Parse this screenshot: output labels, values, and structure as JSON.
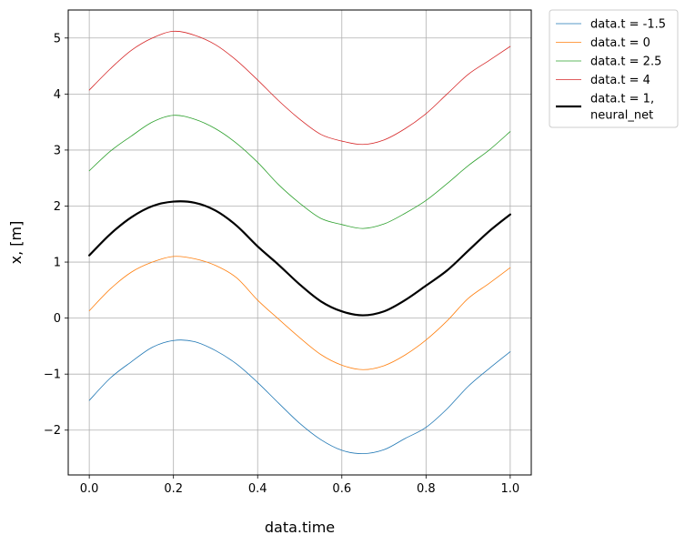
{
  "chart_data": {
    "type": "line",
    "title": "",
    "xlabel": "data.time",
    "ylabel": "x, [m]",
    "xlim": [
      -0.05,
      1.05
    ],
    "ylim": [
      -2.8,
      5.5
    ],
    "xticks": [
      0.0,
      0.2,
      0.4,
      0.6,
      0.8,
      1.0
    ],
    "xtick_labels": [
      "0.0",
      "0.2",
      "0.4",
      "0.6",
      "0.8",
      "1.0"
    ],
    "yticks": [
      -2,
      -1,
      0,
      1,
      2,
      3,
      4,
      5
    ],
    "ytick_labels": [
      "−2",
      "−1",
      "0",
      "1",
      "2",
      "3",
      "4",
      "5"
    ],
    "grid": true,
    "legend_position": "outside-top-right",
    "x": [
      0.0,
      0.05,
      0.1,
      0.15,
      0.2,
      0.25,
      0.3,
      0.35,
      0.4,
      0.45,
      0.5,
      0.55,
      0.6,
      0.65,
      0.7,
      0.75,
      0.8,
      0.85,
      0.9,
      0.95,
      1.0
    ],
    "series": [
      {
        "name": "data.t = -1.5",
        "color": "#1f77b4",
        "width": 0.8,
        "values": [
          -1.47,
          -1.07,
          -0.78,
          -0.52,
          -0.4,
          -0.42,
          -0.58,
          -0.82,
          -1.15,
          -1.52,
          -1.88,
          -2.17,
          -2.36,
          -2.42,
          -2.35,
          -2.15,
          -1.95,
          -1.62,
          -1.22,
          -0.9,
          -0.6
        ]
      },
      {
        "name": "data.t = 0",
        "color": "#ff7f0e",
        "width": 0.8,
        "values": [
          0.13,
          0.52,
          0.82,
          1.0,
          1.1,
          1.06,
          0.94,
          0.72,
          0.32,
          -0.02,
          -0.35,
          -0.65,
          -0.84,
          -0.92,
          -0.85,
          -0.66,
          -0.39,
          -0.05,
          0.35,
          0.62,
          0.9
        ]
      },
      {
        "name": "data.t = 2.5",
        "color": "#2ca02c",
        "width": 0.8,
        "values": [
          2.63,
          2.98,
          3.25,
          3.5,
          3.62,
          3.55,
          3.38,
          3.12,
          2.78,
          2.38,
          2.05,
          1.78,
          1.67,
          1.6,
          1.68,
          1.87,
          2.1,
          2.4,
          2.72,
          3.0,
          3.33
        ]
      },
      {
        "name": "data.t = 4",
        "color": "#d62728",
        "width": 0.8,
        "values": [
          4.07,
          4.45,
          4.78,
          5.0,
          5.12,
          5.05,
          4.88,
          4.6,
          4.25,
          3.88,
          3.55,
          3.28,
          3.16,
          3.1,
          3.18,
          3.38,
          3.65,
          4.0,
          4.35,
          4.6,
          4.85
        ]
      },
      {
        "name": "data.t = 1, neural_net",
        "legend_lines": [
          "data.t = 1,",
          "neural_net"
        ],
        "color": "#000000",
        "width": 2.2,
        "values": [
          1.12,
          1.5,
          1.8,
          2.0,
          2.08,
          2.06,
          1.92,
          1.65,
          1.28,
          0.95,
          0.6,
          0.3,
          0.12,
          0.05,
          0.12,
          0.32,
          0.58,
          0.85,
          1.2,
          1.55,
          1.85
        ]
      }
    ]
  }
}
